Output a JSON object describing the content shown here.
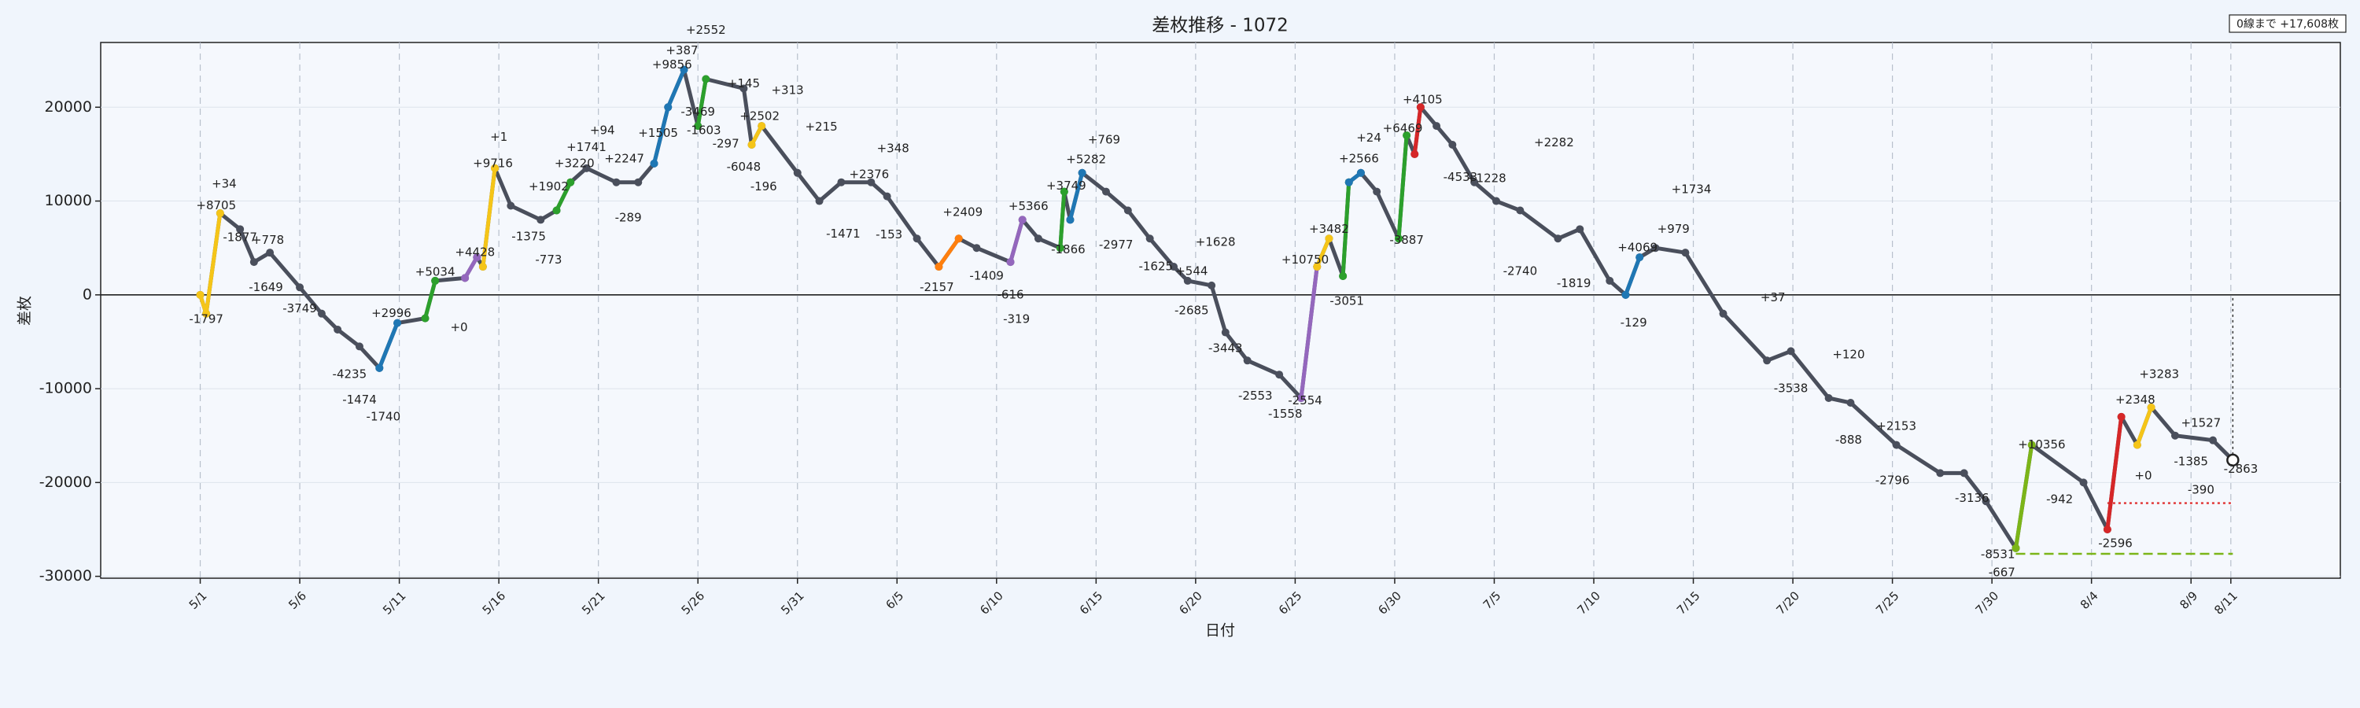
{
  "chart_data": {
    "type": "line",
    "title": "差枚推移 - 1072",
    "x_label": "日付",
    "y_label": "差枚",
    "info_box": "0線まで +17,608枚",
    "xlim": [
      -5,
      107.5
    ],
    "ylim": [
      -30200,
      26900
    ],
    "yticks": [
      -30000,
      -20000,
      -10000,
      0,
      10000,
      20000
    ],
    "xticks": [
      {
        "value": 0,
        "label": "5/1"
      },
      {
        "value": 5,
        "label": "5/6"
      },
      {
        "value": 10,
        "label": "5/11"
      },
      {
        "value": 15,
        "label": "5/16"
      },
      {
        "value": 20,
        "label": "5/21"
      },
      {
        "value": 25,
        "label": "5/26"
      },
      {
        "value": 30,
        "label": "5/31"
      },
      {
        "value": 35,
        "label": "6/5",
        "color": "#e00000"
      },
      {
        "value": 40,
        "label": "6/10"
      },
      {
        "value": 45,
        "label": "6/15",
        "color": "#e00000"
      },
      {
        "value": 50,
        "label": "6/20"
      },
      {
        "value": 55,
        "label": "6/25",
        "color": "#e00000"
      },
      {
        "value": 60,
        "label": "6/30"
      },
      {
        "value": 65,
        "label": "7/5",
        "color": "#e00000"
      },
      {
        "value": 70,
        "label": "7/10"
      },
      {
        "value": 75,
        "label": "7/15",
        "color": "#e00000"
      },
      {
        "value": 80,
        "label": "7/20"
      },
      {
        "value": 85,
        "label": "7/25",
        "color": "#e00000"
      },
      {
        "value": 90,
        "label": "7/30"
      },
      {
        "value": 95,
        "label": "8/4"
      },
      {
        "value": 100,
        "label": "8/9"
      },
      {
        "value": 102,
        "label": "8/11"
      }
    ],
    "grid": true,
    "line_color": "#4a4f5c",
    "x": [
      0,
      0.3,
      1.0,
      2.0,
      2.7,
      3.5,
      5.0,
      6.1,
      6.9,
      8.0,
      9.0,
      9.9,
      11.3,
      11.8,
      13.3,
      13.9,
      14.2,
      14.8,
      15.6,
      17.1,
      17.9,
      18.6,
      19.4,
      20.9,
      22.0,
      22.8,
      23.5,
      24.3,
      25.0,
      25.4,
      27.3,
      27.7,
      28.2,
      30.0,
      31.1,
      32.2,
      33.7,
      34.5,
      36.0,
      37.1,
      38.1,
      39.0,
      40.7,
      41.3,
      42.1,
      43.2,
      43.4,
      43.7,
      44.3,
      45.5,
      46.6,
      47.7,
      48.9,
      49.6,
      50.8,
      51.5,
      52.6,
      54.2,
      55.3,
      56.1,
      56.7,
      57.4,
      57.7,
      58.3,
      59.1,
      60.2,
      60.6,
      61.0,
      61.3,
      62.1,
      62.9,
      64.0,
      65.1,
      66.3,
      68.2,
      69.3,
      70.8,
      71.6,
      72.3,
      73.1,
      74.6,
      76.5,
      78.7,
      79.9,
      81.8,
      82.9,
      85.2,
      87.4,
      88.6,
      89.7,
      91.2,
      92.0,
      94.6,
      95.8,
      96.5,
      97.3,
      98.0,
      99.2,
      101.1,
      102.1
    ],
    "values": [
      0,
      -2000,
      8700,
      7000,
      3500,
      4500,
      800,
      -2000,
      -3700,
      -5500,
      -7800,
      -3000,
      -2500,
      1500,
      1800,
      4000,
      3000,
      13500,
      9500,
      8000,
      9000,
      12000,
      13500,
      12000,
      12000,
      14000,
      20000,
      24000,
      18000,
      23000,
      22000,
      16000,
      18000,
      13000,
      10000,
      12000,
      12000,
      10500,
      6000,
      3000,
      6000,
      5000,
      3500,
      8000,
      6000,
      5000,
      11000,
      8000,
      13000,
      11000,
      9000,
      6000,
      3000,
      1500,
      1000,
      -4000,
      -7000,
      -8500,
      -11000,
      3000,
      6000,
      2000,
      12000,
      13000,
      11000,
      6000,
      17000,
      15000,
      20000,
      18000,
      16000,
      12000,
      10000,
      9000,
      6000,
      7000,
      1500,
      0,
      4000,
      5000,
      4500,
      -2000,
      -7000,
      -6000,
      -11000,
      -11500,
      -16000,
      -19000,
      -19000,
      -22000,
      -27000,
      -16000,
      -20000,
      -25000,
      -13000,
      -16000,
      -12000,
      -15000,
      -15500,
      -17608
    ],
    "series": [
      {
        "color": "#f5c518",
        "x": [
          0,
          0.3,
          1.0
        ],
        "values": [
          0,
          -2000,
          8700
        ]
      },
      {
        "color": "#1f77b4",
        "x": [
          9.0,
          9.9
        ],
        "values": [
          -7800,
          -3000
        ]
      },
      {
        "color": "#2ca02c",
        "x": [
          11.3,
          11.8
        ],
        "values": [
          -2500,
          1500
        ]
      },
      {
        "color": "#9467bd",
        "x": [
          13.3,
          13.9
        ],
        "values": [
          1800,
          4000
        ]
      },
      {
        "color": "#f5c518",
        "x": [
          14.2,
          14.8
        ],
        "values": [
          3000,
          13500
        ]
      },
      {
        "color": "#2ca02c",
        "x": [
          17.9,
          18.6
        ],
        "values": [
          9000,
          12000
        ]
      },
      {
        "color": "#1f77b4",
        "x": [
          22.8,
          23.5,
          24.3
        ],
        "values": [
          14000,
          20000,
          24000
        ]
      },
      {
        "color": "#2ca02c",
        "x": [
          25.0,
          25.4
        ],
        "values": [
          18000,
          23000
        ]
      },
      {
        "color": "#f5c518",
        "x": [
          27.7,
          28.2
        ],
        "values": [
          16000,
          18000
        ]
      },
      {
        "color": "#ff7f0e",
        "x": [
          37.1,
          38.1
        ],
        "values": [
          3000,
          6000
        ]
      },
      {
        "color": "#9467bd",
        "x": [
          40.7,
          41.3
        ],
        "values": [
          3500,
          8000
        ]
      },
      {
        "color": "#2ca02c",
        "x": [
          43.2,
          43.4
        ],
        "values": [
          5000,
          11000
        ]
      },
      {
        "color": "#1f77b4",
        "x": [
          43.7,
          44.3
        ],
        "values": [
          8000,
          13000
        ]
      },
      {
        "color": "#9467bd",
        "x": [
          55.3,
          56.1
        ],
        "values": [
          -11000,
          3000
        ]
      },
      {
        "color": "#f5c518",
        "x": [
          56.1,
          56.7
        ],
        "values": [
          3000,
          6000
        ]
      },
      {
        "color": "#2ca02c",
        "x": [
          57.4,
          57.7
        ],
        "values": [
          2000,
          12000
        ]
      },
      {
        "color": "#1f77b4",
        "x": [
          57.7,
          58.3
        ],
        "values": [
          12000,
          13000
        ]
      },
      {
        "color": "#2ca02c",
        "x": [
          60.2,
          60.6
        ],
        "values": [
          6000,
          17000
        ]
      },
      {
        "color": "#d62728",
        "x": [
          61.0,
          61.3
        ],
        "values": [
          15000,
          20000
        ]
      },
      {
        "color": "#1f77b4",
        "x": [
          71.6,
          72.3
        ],
        "values": [
          0,
          4000
        ]
      },
      {
        "color": "#7cb518",
        "x": [
          91.2,
          92.0
        ],
        "values": [
          -27000,
          -16000
        ]
      },
      {
        "color": "#d62728",
        "x": [
          95.8,
          96.5
        ],
        "values": [
          -25000,
          -13000
        ]
      },
      {
        "color": "#f5c518",
        "x": [
          97.3,
          98.0
        ],
        "values": [
          -16000,
          -12000
        ]
      }
    ],
    "reference_lines": [
      {
        "y": -22200,
        "x": [
          95.8,
          102.1
        ],
        "color": "#e03030",
        "style": "dotted"
      },
      {
        "y": -27600,
        "x": [
          91.2,
          102.1
        ],
        "color": "#7cb518",
        "style": "dashed"
      }
    ],
    "annotations": [
      {
        "text": "+34",
        "x": 1.2,
        "y": 11800,
        "color": "#333333"
      },
      {
        "text": "+8705",
        "x": 0.8,
        "y": 9500,
        "color": "#f5c518"
      },
      {
        "text": "-1797",
        "x": 0.3,
        "y": -2600,
        "color": "#f5c518"
      },
      {
        "text": "-1877",
        "x": 2.0,
        "y": 6100,
        "color": "#333333"
      },
      {
        "text": "+778",
        "x": 3.4,
        "y": 5800,
        "color": "#333333"
      },
      {
        "text": "-1649",
        "x": 3.3,
        "y": 800,
        "color": "#333333"
      },
      {
        "text": "-3749",
        "x": 5.0,
        "y": -1500,
        "color": "#333333"
      },
      {
        "text": "-4235",
        "x": 7.5,
        "y": -8500,
        "color": "#333333"
      },
      {
        "text": "-1474",
        "x": 8.0,
        "y": -11200,
        "color": "#333333"
      },
      {
        "text": "-1740",
        "x": 9.2,
        "y": -13000,
        "color": "#1f77b4"
      },
      {
        "text": "+2996",
        "x": 9.6,
        "y": -2000,
        "color": "#1f77b4"
      },
      {
        "text": "+5034",
        "x": 11.8,
        "y": 2400,
        "color": "#2ca02c"
      },
      {
        "text": "+4428",
        "x": 13.8,
        "y": 4500,
        "color": "#9467bd"
      },
      {
        "text": "+0",
        "x": 13.0,
        "y": -3500,
        "color": "#9467bd"
      },
      {
        "text": "+9716",
        "x": 14.7,
        "y": 14000,
        "color": "#f5c518"
      },
      {
        "text": "+1",
        "x": 15.0,
        "y": 16800,
        "color": "#333333"
      },
      {
        "text": "-1375",
        "x": 16.5,
        "y": 6200,
        "color": "#333333"
      },
      {
        "text": "-773",
        "x": 17.5,
        "y": 3700,
        "color": "#333333"
      },
      {
        "text": "+1902",
        "x": 17.5,
        "y": 11500,
        "color": "#333333"
      },
      {
        "text": "+3220",
        "x": 18.8,
        "y": 14000,
        "color": "#2ca02c"
      },
      {
        "text": "+1741",
        "x": 19.4,
        "y": 15700,
        "color": "#333333"
      },
      {
        "text": "+94",
        "x": 20.2,
        "y": 17500,
        "color": "#333333"
      },
      {
        "text": "+2247",
        "x": 21.3,
        "y": 14500,
        "color": "#333333"
      },
      {
        "text": "-289",
        "x": 21.5,
        "y": 8200,
        "color": "#333333"
      },
      {
        "text": "+1505",
        "x": 23.0,
        "y": 17200,
        "color": "#333333"
      },
      {
        "text": "+387",
        "x": 24.2,
        "y": 26000,
        "color": "#333333"
      },
      {
        "text": "+2552",
        "x": 25.4,
        "y": 28200,
        "color": "#2ca02c"
      },
      {
        "text": "+9856",
        "x": 23.7,
        "y": 24500,
        "color": "#1f77b4"
      },
      {
        "text": "-3469",
        "x": 25.0,
        "y": 19500,
        "color": "#333333"
      },
      {
        "text": "-1603",
        "x": 25.3,
        "y": 17500,
        "color": "#2ca02c"
      },
      {
        "text": "-297",
        "x": 26.4,
        "y": 16100,
        "color": "#333333"
      },
      {
        "text": "+145",
        "x": 27.3,
        "y": 22500,
        "color": "#333333"
      },
      {
        "text": "+313",
        "x": 29.5,
        "y": 21800,
        "color": "#333333"
      },
      {
        "text": "+2502",
        "x": 28.1,
        "y": 19000,
        "color": "#f5c518"
      },
      {
        "text": "-6048",
        "x": 27.3,
        "y": 13600,
        "color": "#333333"
      },
      {
        "text": "-196",
        "x": 28.3,
        "y": 11500,
        "color": "#f5c518"
      },
      {
        "text": "+215",
        "x": 31.2,
        "y": 17900,
        "color": "#333333"
      },
      {
        "text": "+348",
        "x": 34.8,
        "y": 15600,
        "color": "#333333"
      },
      {
        "text": "+2376",
        "x": 33.6,
        "y": 12800,
        "color": "#333333"
      },
      {
        "text": "-1471",
        "x": 32.3,
        "y": 6500,
        "color": "#333333"
      },
      {
        "text": "-153",
        "x": 34.6,
        "y": 6400,
        "color": "#333333"
      },
      {
        "text": "-2157",
        "x": 37.0,
        "y": 800,
        "color": "#333333"
      },
      {
        "text": "+2409",
        "x": 38.3,
        "y": 8800,
        "color": "#ff7f0e"
      },
      {
        "text": "-1409",
        "x": 39.5,
        "y": 2000,
        "color": "#333333"
      },
      {
        "text": "-616",
        "x": 40.7,
        "y": 0,
        "color": "#333333"
      },
      {
        "text": "-319",
        "x": 41.0,
        "y": -2600,
        "color": "#9467bd"
      },
      {
        "text": "+5366",
        "x": 41.6,
        "y": 9400,
        "color": "#9467bd"
      },
      {
        "text": "+3749",
        "x": 43.5,
        "y": 11600,
        "color": "#2ca02c"
      },
      {
        "text": "-1866",
        "x": 43.6,
        "y": 4800,
        "color": "#2ca02c"
      },
      {
        "text": "+5282",
        "x": 44.5,
        "y": 14400,
        "color": "#1f77b4"
      },
      {
        "text": "+769",
        "x": 45.4,
        "y": 16500,
        "color": "#333333"
      },
      {
        "text": "-2977",
        "x": 46.0,
        "y": 5300,
        "color": "#333333"
      },
      {
        "text": "-1625",
        "x": 48.0,
        "y": 3000,
        "color": "#333333"
      },
      {
        "text": "+1628",
        "x": 51.0,
        "y": 5600,
        "color": "#333333"
      },
      {
        "text": "+544",
        "x": 49.8,
        "y": 2500,
        "color": "#333333"
      },
      {
        "text": "-2685",
        "x": 49.8,
        "y": -1700,
        "color": "#333333"
      },
      {
        "text": "-3443",
        "x": 51.5,
        "y": -5700,
        "color": "#333333"
      },
      {
        "text": "-2553",
        "x": 53.0,
        "y": -10800,
        "color": "#333333"
      },
      {
        "text": "-1558",
        "x": 54.5,
        "y": -12700,
        "color": "#333333"
      },
      {
        "text": "-2554",
        "x": 55.5,
        "y": -11300,
        "color": "#9467bd"
      },
      {
        "text": "+10750",
        "x": 55.5,
        "y": 3700,
        "color": "#9467bd"
      },
      {
        "text": "+3482",
        "x": 56.7,
        "y": 7000,
        "color": "#f5c518"
      },
      {
        "text": "-3051",
        "x": 57.6,
        "y": -700,
        "color": "#f5c518"
      },
      {
        "text": "+2566",
        "x": 58.2,
        "y": 14500,
        "color": "#1f77b4"
      },
      {
        "text": "+24",
        "x": 58.7,
        "y": 16700,
        "color": "#333333"
      },
      {
        "text": "+6469",
        "x": 60.4,
        "y": 17700,
        "color": "#2ca02c"
      },
      {
        "text": "+4105",
        "x": 61.4,
        "y": 20800,
        "color": "#d62728"
      },
      {
        "text": "-3887",
        "x": 60.6,
        "y": 5800,
        "color": "#2ca02c"
      },
      {
        "text": "-4533",
        "x": 63.3,
        "y": 12500,
        "color": "#333333"
      },
      {
        "text": "+1228",
        "x": 64.6,
        "y": 12400,
        "color": "#333333"
      },
      {
        "text": "+2282",
        "x": 68.0,
        "y": 16200,
        "color": "#333333"
      },
      {
        "text": "-2740",
        "x": 66.3,
        "y": 2500,
        "color": "#333333"
      },
      {
        "text": "-1819",
        "x": 69.0,
        "y": 1200,
        "color": "#333333"
      },
      {
        "text": "+4069",
        "x": 72.2,
        "y": 5000,
        "color": "#1f77b4"
      },
      {
        "text": "-129",
        "x": 72.0,
        "y": -3000,
        "color": "#1f77b4"
      },
      {
        "text": "+1734",
        "x": 74.9,
        "y": 11200,
        "color": "#333333"
      },
      {
        "text": "+979",
        "x": 74.0,
        "y": 7000,
        "color": "#333333"
      },
      {
        "text": "+37",
        "x": 79.0,
        "y": -300,
        "color": "#333333"
      },
      {
        "text": "-3538",
        "x": 79.9,
        "y": -10000,
        "color": "#333333"
      },
      {
        "text": "+120",
        "x": 82.8,
        "y": -6400,
        "color": "#333333"
      },
      {
        "text": "-888",
        "x": 82.8,
        "y": -15500,
        "color": "#333333"
      },
      {
        "text": "+2153",
        "x": 85.2,
        "y": -14000,
        "color": "#333333"
      },
      {
        "text": "-2796",
        "x": 85.0,
        "y": -19800,
        "color": "#333333"
      },
      {
        "text": "-3136",
        "x": 89.0,
        "y": -21700,
        "color": "#333333"
      },
      {
        "text": "-8531",
        "x": 90.3,
        "y": -27700,
        "color": "#333333"
      },
      {
        "text": "-667",
        "x": 90.5,
        "y": -29600,
        "color": "#7cb518"
      },
      {
        "text": "+10356",
        "x": 92.5,
        "y": -16000,
        "color": "#7cb518"
      },
      {
        "text": "-942",
        "x": 93.4,
        "y": -21800,
        "color": "#333333"
      },
      {
        "text": "-2596",
        "x": 96.2,
        "y": -26500,
        "color": "#d62728"
      },
      {
        "text": "+3283",
        "x": 98.4,
        "y": -8500,
        "color": "#f5c518"
      },
      {
        "text": "+2348",
        "x": 97.2,
        "y": -11200,
        "color": "#333333"
      },
      {
        "text": "+0",
        "x": 97.6,
        "y": -19300,
        "color": "#f5c518"
      },
      {
        "text": "+1527",
        "x": 100.5,
        "y": -13700,
        "color": "#333333"
      },
      {
        "text": "-1385",
        "x": 100.0,
        "y": -17800,
        "color": "#333333"
      },
      {
        "text": "-390",
        "x": 100.5,
        "y": -20800,
        "color": "#333333"
      },
      {
        "text": "-2863",
        "x": 102.5,
        "y": -18600,
        "color": "#333333"
      }
    ]
  }
}
